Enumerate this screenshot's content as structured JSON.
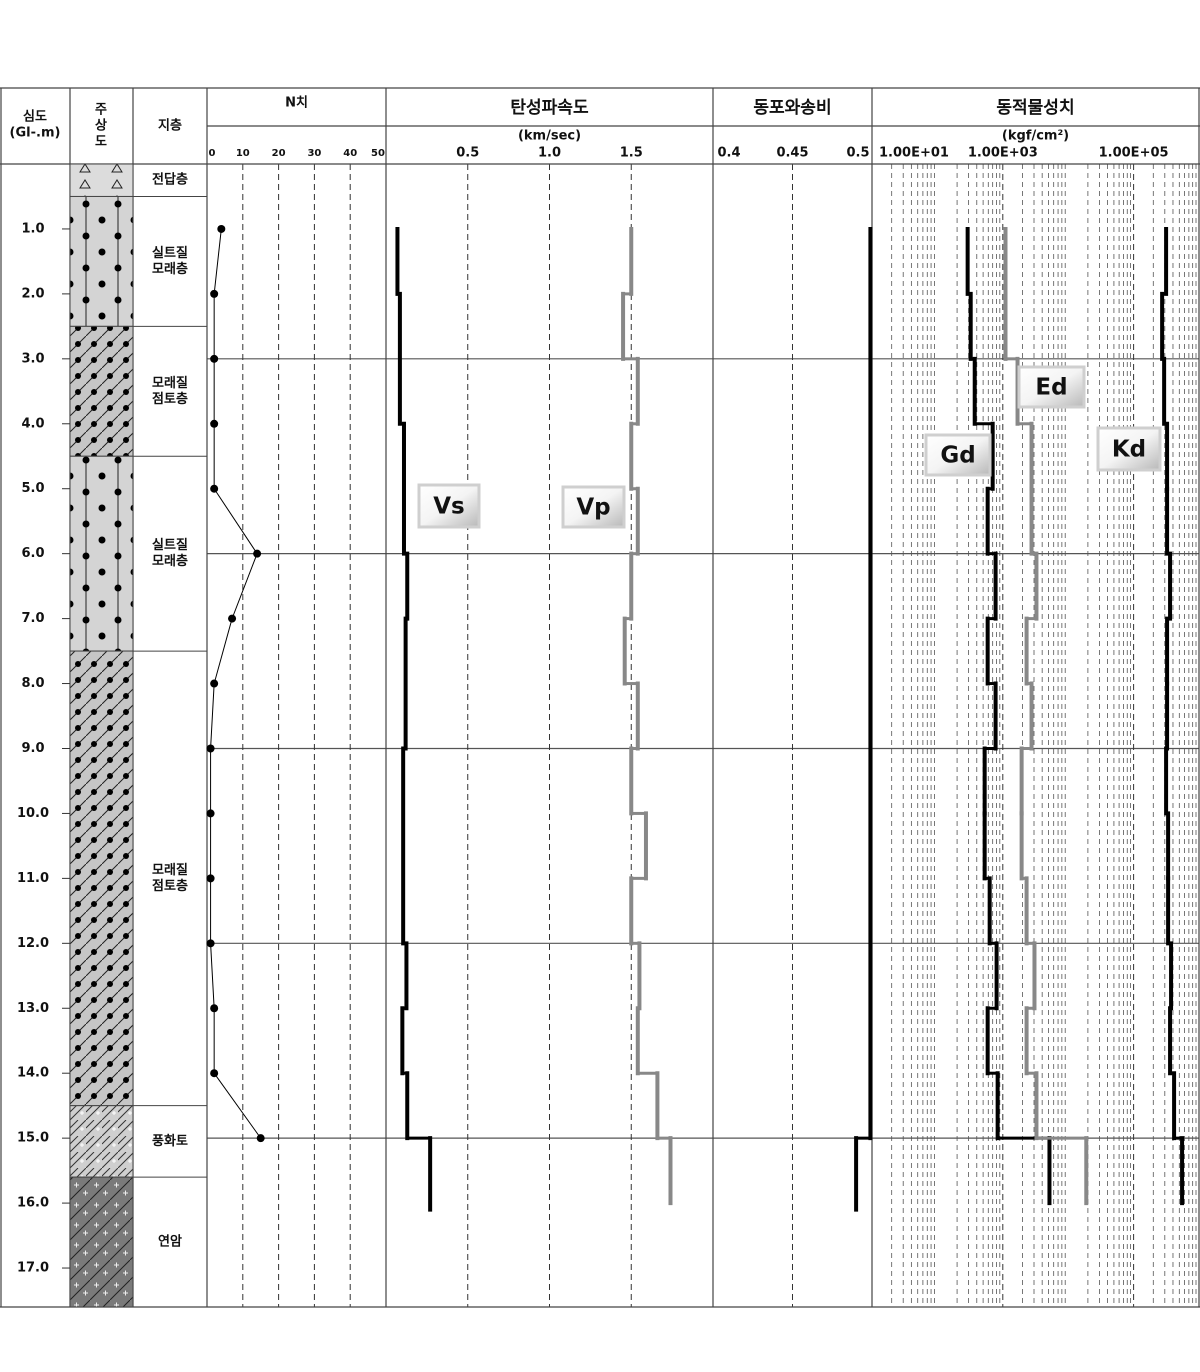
{
  "chart_data": [
    {
      "type": "log-column",
      "depth_title": [
        "심도",
        "(Gl-.m)"
      ],
      "column_title": [
        "주",
        "상",
        "도"
      ],
      "layer_title": "지층",
      "ylim": [
        0,
        17.6
      ],
      "yticks": [
        {
          "value": 1,
          "label": "1.0"
        },
        {
          "value": 2,
          "label": "2.0"
        },
        {
          "value": 3,
          "label": "3.0"
        },
        {
          "value": 4,
          "label": "4.0"
        },
        {
          "value": 5,
          "label": "5.0"
        },
        {
          "value": 6,
          "label": "6.0"
        },
        {
          "value": 7,
          "label": "7.0"
        },
        {
          "value": 8,
          "label": "8.0"
        },
        {
          "value": 9,
          "label": "9.0"
        },
        {
          "value": 10,
          "label": "10.0"
        },
        {
          "value": 11,
          "label": "11.0"
        },
        {
          "value": 12,
          "label": "12.0"
        },
        {
          "value": 13,
          "label": "13.0"
        },
        {
          "value": 14,
          "label": "14.0"
        },
        {
          "value": 15,
          "label": "15.0"
        },
        {
          "value": 16,
          "label": "16.0"
        },
        {
          "value": 17,
          "label": "17.0"
        }
      ],
      "ygrid": [
        3,
        6,
        9,
        12,
        15
      ],
      "layers": [
        {
          "name": [
            "전답층"
          ],
          "top": 0,
          "bottom": 0.5
        },
        {
          "name": [
            "실트질",
            "모래층"
          ],
          "top": 0.5,
          "bottom": 2.5
        },
        {
          "name": [
            "모래질",
            "점토층"
          ],
          "top": 2.5,
          "bottom": 4.5
        },
        {
          "name": [
            "실트질",
            "모래층"
          ],
          "top": 4.5,
          "bottom": 7.5
        },
        {
          "name": [
            "모래질",
            "점토층"
          ],
          "top": 7.5,
          "bottom": 14.5
        },
        {
          "name": [
            "풍화토"
          ],
          "top": 14.5,
          "bottom": 15.6
        },
        {
          "name": [
            "연암"
          ],
          "top": 15.6,
          "bottom": 17.6
        }
      ]
    },
    {
      "type": "line",
      "title": "N치",
      "xlim": [
        0,
        50
      ],
      "xticks": [
        0,
        10,
        20,
        30,
        40,
        50
      ],
      "grid": true,
      "color": "#000000",
      "depths": [
        1,
        2,
        3,
        4,
        5,
        6,
        7,
        8,
        9,
        10,
        11,
        12,
        13,
        14,
        15
      ],
      "values": [
        4,
        2,
        2,
        2,
        2,
        14,
        7,
        2,
        1,
        1,
        1,
        1,
        2,
        2,
        15
      ]
    },
    {
      "type": "step",
      "title": "탄성파속도",
      "unit": "(km/sec)",
      "xlim": [
        0,
        2
      ],
      "xticks": [
        0.5,
        {
          "value": 1,
          "label": "1.0"
        },
        1.5
      ],
      "grid": true,
      "series": [
        {
          "name": "Vs",
          "color": "#000000",
          "depths": [
            1,
            2,
            4,
            6,
            7,
            9,
            12,
            13,
            14,
            15,
            16.1
          ],
          "values": [
            0.07,
            0.085,
            0.11,
            0.13,
            0.12,
            0.105,
            0.125,
            0.1,
            0.13,
            0.27
          ]
        },
        {
          "name": "Vp",
          "color": "#888888",
          "depths": [
            1,
            2,
            3,
            4,
            5,
            6,
            7,
            8,
            9,
            10,
            11,
            12,
            13,
            14,
            15,
            16
          ],
          "values": [
            1.5,
            1.45,
            1.54,
            1.5,
            1.54,
            1.5,
            1.46,
            1.54,
            1.5,
            1.59,
            1.5,
            1.55,
            1.54,
            1.66,
            1.74
          ]
        }
      ]
    },
    {
      "type": "step",
      "title": "동포와송비",
      "xlim": [
        0.4,
        0.5
      ],
      "xticks": [
        0.4,
        0.45,
        0.5
      ],
      "grid": true,
      "series": [
        {
          "color": "#000000",
          "depths": [
            1,
            15,
            16.1
          ],
          "values": [
            0.499,
            0.49
          ]
        }
      ]
    },
    {
      "type": "step",
      "title": "동적물성치",
      "unit": "(kgf/cm²)",
      "log": true,
      "xlim": [
        10,
        1000000
      ],
      "xticks": [
        {
          "value": 10,
          "label": "1.00E+01"
        },
        {
          "value": 1000,
          "label": "1.00E+03"
        },
        {
          "value": 100000,
          "label": "1.00E+05"
        }
      ],
      "grid": true,
      "series": [
        {
          "name": "Gd",
          "color": "#000000",
          "depths": [
            1,
            2,
            3,
            4,
            5,
            6,
            7,
            8,
            9,
            10,
            11,
            12,
            13,
            14,
            15,
            16
          ],
          "values": [
            290,
            323,
            372,
            700,
            587,
            776,
            587,
            776,
            528,
            528,
            630,
            804,
            587,
            834,
            5170
          ]
        },
        {
          "name": "Ed",
          "color": "#888888",
          "depths": [
            1,
            2,
            3,
            4,
            5,
            6,
            7,
            8,
            9,
            10,
            11,
            12,
            13,
            14,
            15,
            16
          ],
          "values": [
            1100,
            1100,
            1680,
            2750,
            2750,
            3270,
            2310,
            2750,
            1940,
            1940,
            2310,
            3050,
            2310,
            3270,
            18900
          ]
        },
        {
          "name": "Kd",
          "color": "#000000",
          "depths": [
            1,
            2,
            3,
            4,
            5,
            6,
            7,
            8,
            9,
            10,
            11,
            12,
            13,
            14,
            15,
            16
          ],
          "values": [
            314000,
            273000,
            293000,
            325000,
            325000,
            361000,
            325000,
            325000,
            314000,
            337000,
            337000,
            374000,
            361000,
            416000,
            551000
          ]
        }
      ]
    }
  ]
}
